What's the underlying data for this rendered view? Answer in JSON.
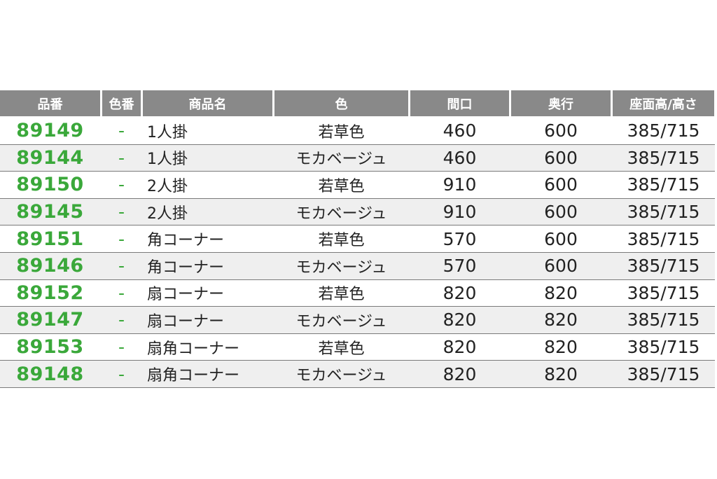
{
  "colors": {
    "header_bg": "#898989",
    "code_green": "#3aa83a",
    "alt_row": "#efefef"
  },
  "headers": [
    "品番",
    "色番",
    "商品名",
    "色",
    "間口",
    "奥行",
    "座面高/高さ"
  ],
  "rows": [
    {
      "code": "89149",
      "color_no": "-",
      "name": "1人掛",
      "color": "若草色",
      "width": "460",
      "depth": "600",
      "height": "385/715"
    },
    {
      "code": "89144",
      "color_no": "-",
      "name": "1人掛",
      "color": "モカベージュ",
      "width": "460",
      "depth": "600",
      "height": "385/715"
    },
    {
      "code": "89150",
      "color_no": "-",
      "name": "2人掛",
      "color": "若草色",
      "width": "910",
      "depth": "600",
      "height": "385/715"
    },
    {
      "code": "89145",
      "color_no": "-",
      "name": "2人掛",
      "color": "モカベージュ",
      "width": "910",
      "depth": "600",
      "height": "385/715"
    },
    {
      "code": "89151",
      "color_no": "-",
      "name": "角コーナー",
      "color": "若草色",
      "width": "570",
      "depth": "600",
      "height": "385/715"
    },
    {
      "code": "89146",
      "color_no": "-",
      "name": "角コーナー",
      "color": "モカベージュ",
      "width": "570",
      "depth": "600",
      "height": "385/715"
    },
    {
      "code": "89152",
      "color_no": "-",
      "name": "扇コーナー",
      "color": "若草色",
      "width": "820",
      "depth": "820",
      "height": "385/715"
    },
    {
      "code": "89147",
      "color_no": "-",
      "name": "扇コーナー",
      "color": "モカベージュ",
      "width": "820",
      "depth": "820",
      "height": "385/715"
    },
    {
      "code": "89153",
      "color_no": "-",
      "name": "扇角コーナー",
      "color": "若草色",
      "width": "820",
      "depth": "820",
      "height": "385/715"
    },
    {
      "code": "89148",
      "color_no": "-",
      "name": "扇角コーナー",
      "color": "モカベージュ",
      "width": "820",
      "depth": "820",
      "height": "385/715"
    }
  ]
}
